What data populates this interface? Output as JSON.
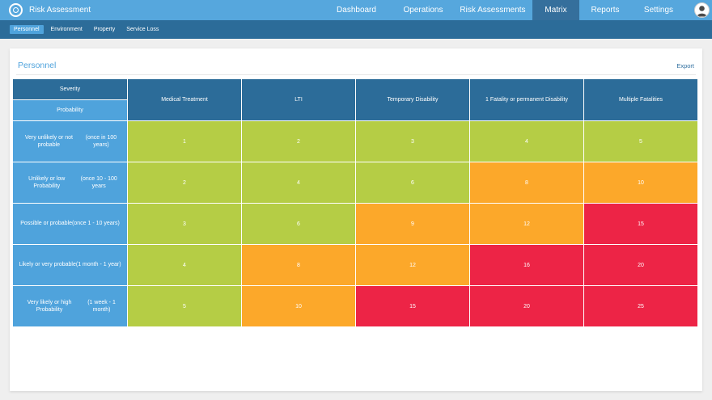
{
  "app": {
    "title": "Risk Assessment",
    "logo_icon": "compass-logo-icon"
  },
  "nav": {
    "items": [
      {
        "label": "Dashboard",
        "active": false
      },
      {
        "label": "Operations",
        "active": false
      },
      {
        "label": "Risk Assessments",
        "active": false
      },
      {
        "label": "Matrix",
        "active": true
      },
      {
        "label": "Reports",
        "active": false
      },
      {
        "label": "Settings",
        "active": false
      }
    ]
  },
  "subnav": {
    "items": [
      {
        "label": "Personnel",
        "active": true
      },
      {
        "label": "Environment",
        "active": false
      },
      {
        "label": "Property",
        "active": false
      },
      {
        "label": "Service Loss",
        "active": false
      }
    ]
  },
  "card": {
    "title": "Personnel",
    "export_label": "Export"
  },
  "matrix": {
    "severity_label": "Severity",
    "probability_label": "Probability",
    "severities": [
      "Medical Treatment",
      "LTI",
      "Temporary Disability",
      "1 Fatality or permanent Disability",
      "Multiple Fatalities"
    ],
    "rows": [
      {
        "line1": "Very unlikely or not probable",
        "line2": "(once in 100 years)",
        "values": [
          "1",
          "2",
          "3",
          "4",
          "5"
        ],
        "levels": [
          "low",
          "low",
          "low",
          "low",
          "low"
        ]
      },
      {
        "line1": "Unlikely or low Probability",
        "line2": "(once 10 - 100 years",
        "values": [
          "2",
          "4",
          "6",
          "8",
          "10"
        ],
        "levels": [
          "low",
          "low",
          "low",
          "medium",
          "medium"
        ]
      },
      {
        "line1": "Possible or probable",
        "line2": "(once 1 - 10 years)",
        "values": [
          "3",
          "6",
          "9",
          "12",
          "15"
        ],
        "levels": [
          "low",
          "low",
          "medium",
          "medium",
          "high"
        ]
      },
      {
        "line1": "Likely or very probable",
        "line2": "(1 month - 1 year)",
        "values": [
          "4",
          "8",
          "12",
          "16",
          "20"
        ],
        "levels": [
          "low",
          "medium",
          "medium",
          "high",
          "high"
        ]
      },
      {
        "line1": "Very likely or high Probability",
        "line2": "(1 week - 1 month)",
        "values": [
          "5",
          "10",
          "15",
          "20",
          "25"
        ],
        "levels": [
          "low",
          "medium",
          "high",
          "high",
          "high"
        ]
      }
    ]
  },
  "colors": {
    "topbar": "#56a7dd",
    "nav_active": "#356f9c",
    "subbar": "#2c6c99",
    "accent": "#4fa3dc",
    "low": "#b5cd45",
    "medium": "#fca82a",
    "high": "#ed2446"
  }
}
